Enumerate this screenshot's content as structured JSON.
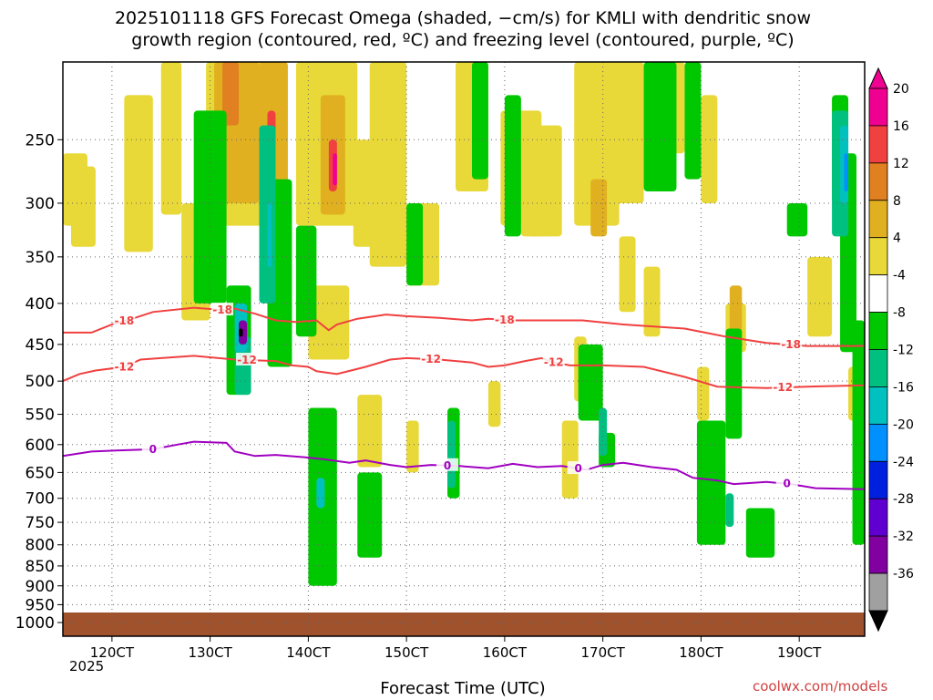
{
  "title_line1": "2025101118 GFS Forecast Omega (shaded, −cm/s) for KMLI with dendritic snow",
  "title_line2": "growth region (contoured, red, ºC) and freezing level (contoured, purple, ºC)",
  "xlabel": "Forecast Time (UTC)",
  "year_label": "2025",
  "credit": "coolwx.com/models",
  "colors": {
    "neg36": "#000000",
    "neg32": "#a0a0a0",
    "neg28": "#8000a0",
    "neg24": "#6000d0",
    "neg20": "#0020e0",
    "neg16": "#0090ff",
    "neg12": "#00c0c0",
    "neg8": "#00c080",
    "neg4": "#00c800",
    "pos4": "#e8d838",
    "pos8": "#e0b020",
    "pos12": "#e08020",
    "pos16": "#f04040",
    "pos20": "#f00090",
    "dgz_line": "#f04040",
    "freezing_line": "#a000c0",
    "ground": "#a0522d"
  },
  "chart_data": {
    "type": "heatmap",
    "x_axis": {
      "ticks": [
        "120CT",
        "130CT",
        "140CT",
        "150CT",
        "160CT",
        "170CT",
        "180CT",
        "190CT"
      ],
      "range_hours": [
        -12,
        184
      ]
    },
    "y_axis": {
      "unit": "hPa",
      "scale": "log-pressure",
      "ticks": [
        250,
        300,
        350,
        400,
        450,
        500,
        550,
        600,
        650,
        700,
        750,
        800,
        850,
        900,
        950,
        1000
      ],
      "range": [
        200,
        1040
      ]
    },
    "colorbar": {
      "labels": [
        "20",
        "16",
        "12",
        "8",
        "4",
        "-4",
        "-8",
        "-12",
        "-16",
        "-20",
        "-24",
        "-28",
        "-32",
        "-36"
      ],
      "bins": [
        {
          "key": "pos20",
          "label": "20"
        },
        {
          "key": "pos16",
          "label": "16"
        },
        {
          "key": "pos12",
          "label": "12"
        },
        {
          "key": "pos8",
          "label": "8"
        },
        {
          "key": "pos4",
          "label": "4"
        },
        {
          "key": "white",
          "label": "-4"
        },
        {
          "key": "neg4",
          "label": "-8"
        },
        {
          "key": "neg8",
          "label": "-12"
        },
        {
          "key": "neg12",
          "label": "-16"
        },
        {
          "key": "neg16",
          "label": "-20"
        },
        {
          "key": "neg20",
          "label": "-24"
        },
        {
          "key": "neg24",
          "label": "-28"
        },
        {
          "key": "neg28",
          "label": "-32"
        },
        {
          "key": "neg32",
          "label": "-36"
        }
      ]
    },
    "contours": [
      {
        "label": "-18",
        "color": "dgz_line",
        "label_positions_hours": [
          3,
          27,
          96,
          166
        ],
        "points": [
          [
            -12,
            435
          ],
          [
            -5,
            435
          ],
          [
            0,
            425
          ],
          [
            5,
            418
          ],
          [
            10,
            410
          ],
          [
            20,
            405
          ],
          [
            28,
            408
          ],
          [
            30,
            406
          ],
          [
            35,
            412
          ],
          [
            40,
            420
          ],
          [
            45,
            422
          ],
          [
            50,
            420
          ],
          [
            53,
            432
          ],
          [
            55,
            425
          ],
          [
            60,
            418
          ],
          [
            67,
            413
          ],
          [
            72,
            415
          ],
          [
            80,
            417
          ],
          [
            88,
            420
          ],
          [
            92,
            418
          ],
          [
            98,
            420
          ],
          [
            110,
            420
          ],
          [
            115,
            420
          ],
          [
            125,
            425
          ],
          [
            140,
            430
          ],
          [
            150,
            440
          ],
          [
            160,
            448
          ],
          [
            170,
            452
          ],
          [
            184,
            452
          ]
        ]
      },
      {
        "label": "-12",
        "color": "dgz_line",
        "label_positions_hours": [
          3,
          33,
          78,
          108,
          164
        ],
        "points": [
          [
            -12,
            500
          ],
          [
            -8,
            490
          ],
          [
            -4,
            485
          ],
          [
            3,
            480
          ],
          [
            7,
            470
          ],
          [
            12,
            468
          ],
          [
            20,
            465
          ],
          [
            30,
            470
          ],
          [
            40,
            472
          ],
          [
            44,
            478
          ],
          [
            48,
            480
          ],
          [
            50,
            486
          ],
          [
            55,
            490
          ],
          [
            62,
            480
          ],
          [
            68,
            470
          ],
          [
            72,
            468
          ],
          [
            80,
            470
          ],
          [
            88,
            474
          ],
          [
            92,
            480
          ],
          [
            96,
            478
          ],
          [
            101,
            472
          ],
          [
            105,
            468
          ],
          [
            108,
            474
          ],
          [
            112,
            478
          ],
          [
            120,
            478
          ],
          [
            130,
            480
          ],
          [
            140,
            494
          ],
          [
            148,
            508
          ],
          [
            160,
            510
          ],
          [
            170,
            508
          ],
          [
            184,
            506
          ]
        ]
      },
      {
        "label": "0",
        "color": "freezing_line",
        "label_positions_hours": [
          10,
          82,
          114,
          165
        ],
        "points": [
          [
            -12,
            620
          ],
          [
            -5,
            612
          ],
          [
            2,
            610
          ],
          [
            10,
            608
          ],
          [
            16,
            600
          ],
          [
            20,
            595
          ],
          [
            28,
            597
          ],
          [
            30,
            612
          ],
          [
            35,
            620
          ],
          [
            40,
            618
          ],
          [
            47,
            622
          ],
          [
            52,
            626
          ],
          [
            58,
            632
          ],
          [
            62,
            628
          ],
          [
            68,
            636
          ],
          [
            72,
            640
          ],
          [
            78,
            636
          ],
          [
            85,
            638
          ],
          [
            92,
            642
          ],
          [
            98,
            634
          ],
          [
            104,
            640
          ],
          [
            110,
            638
          ],
          [
            116,
            645
          ],
          [
            120,
            636
          ],
          [
            125,
            632
          ],
          [
            132,
            640
          ],
          [
            138,
            645
          ],
          [
            142,
            660
          ],
          [
            148,
            665
          ],
          [
            152,
            672
          ],
          [
            160,
            668
          ],
          [
            166,
            672
          ],
          [
            172,
            680
          ],
          [
            184,
            682
          ]
        ]
      }
    ],
    "omega_regions_note": "shaded irregular patches; values in -cm/s"
  }
}
